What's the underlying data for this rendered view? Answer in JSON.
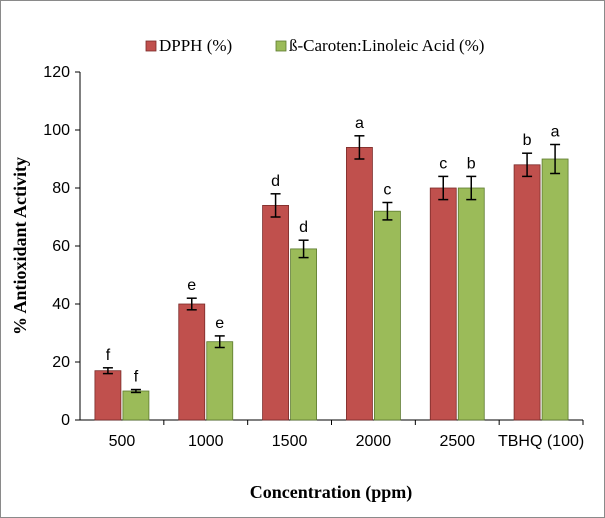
{
  "chart_data": {
    "type": "bar",
    "xlabel": "Concentration (ppm)",
    "ylabel": "% Antioxidant Activity",
    "ylim": [
      0,
      120
    ],
    "yticks": [
      0,
      20,
      40,
      60,
      80,
      100,
      120
    ],
    "categories": [
      "500",
      "1000",
      "1500",
      "2000",
      "2500",
      "TBHQ (100)"
    ],
    "legend_position": "top",
    "grid": false,
    "series": [
      {
        "name": "DPPH (%)",
        "color": "#c0504d",
        "values": [
          17,
          40,
          74,
          94,
          80,
          88
        ],
        "errors": [
          1,
          2,
          4,
          4,
          4,
          4
        ],
        "letters": [
          "f",
          "e",
          "d",
          "a",
          "c",
          "b"
        ]
      },
      {
        "name": "ß-Caroten:Linoleic Acid (%)",
        "color": "#9bbb59",
        "values": [
          10,
          27,
          59,
          72,
          80,
          90
        ],
        "errors": [
          0.5,
          2,
          3,
          3,
          4,
          5
        ],
        "letters": [
          "f",
          "e",
          "d",
          "c",
          "b",
          "a"
        ]
      }
    ]
  }
}
